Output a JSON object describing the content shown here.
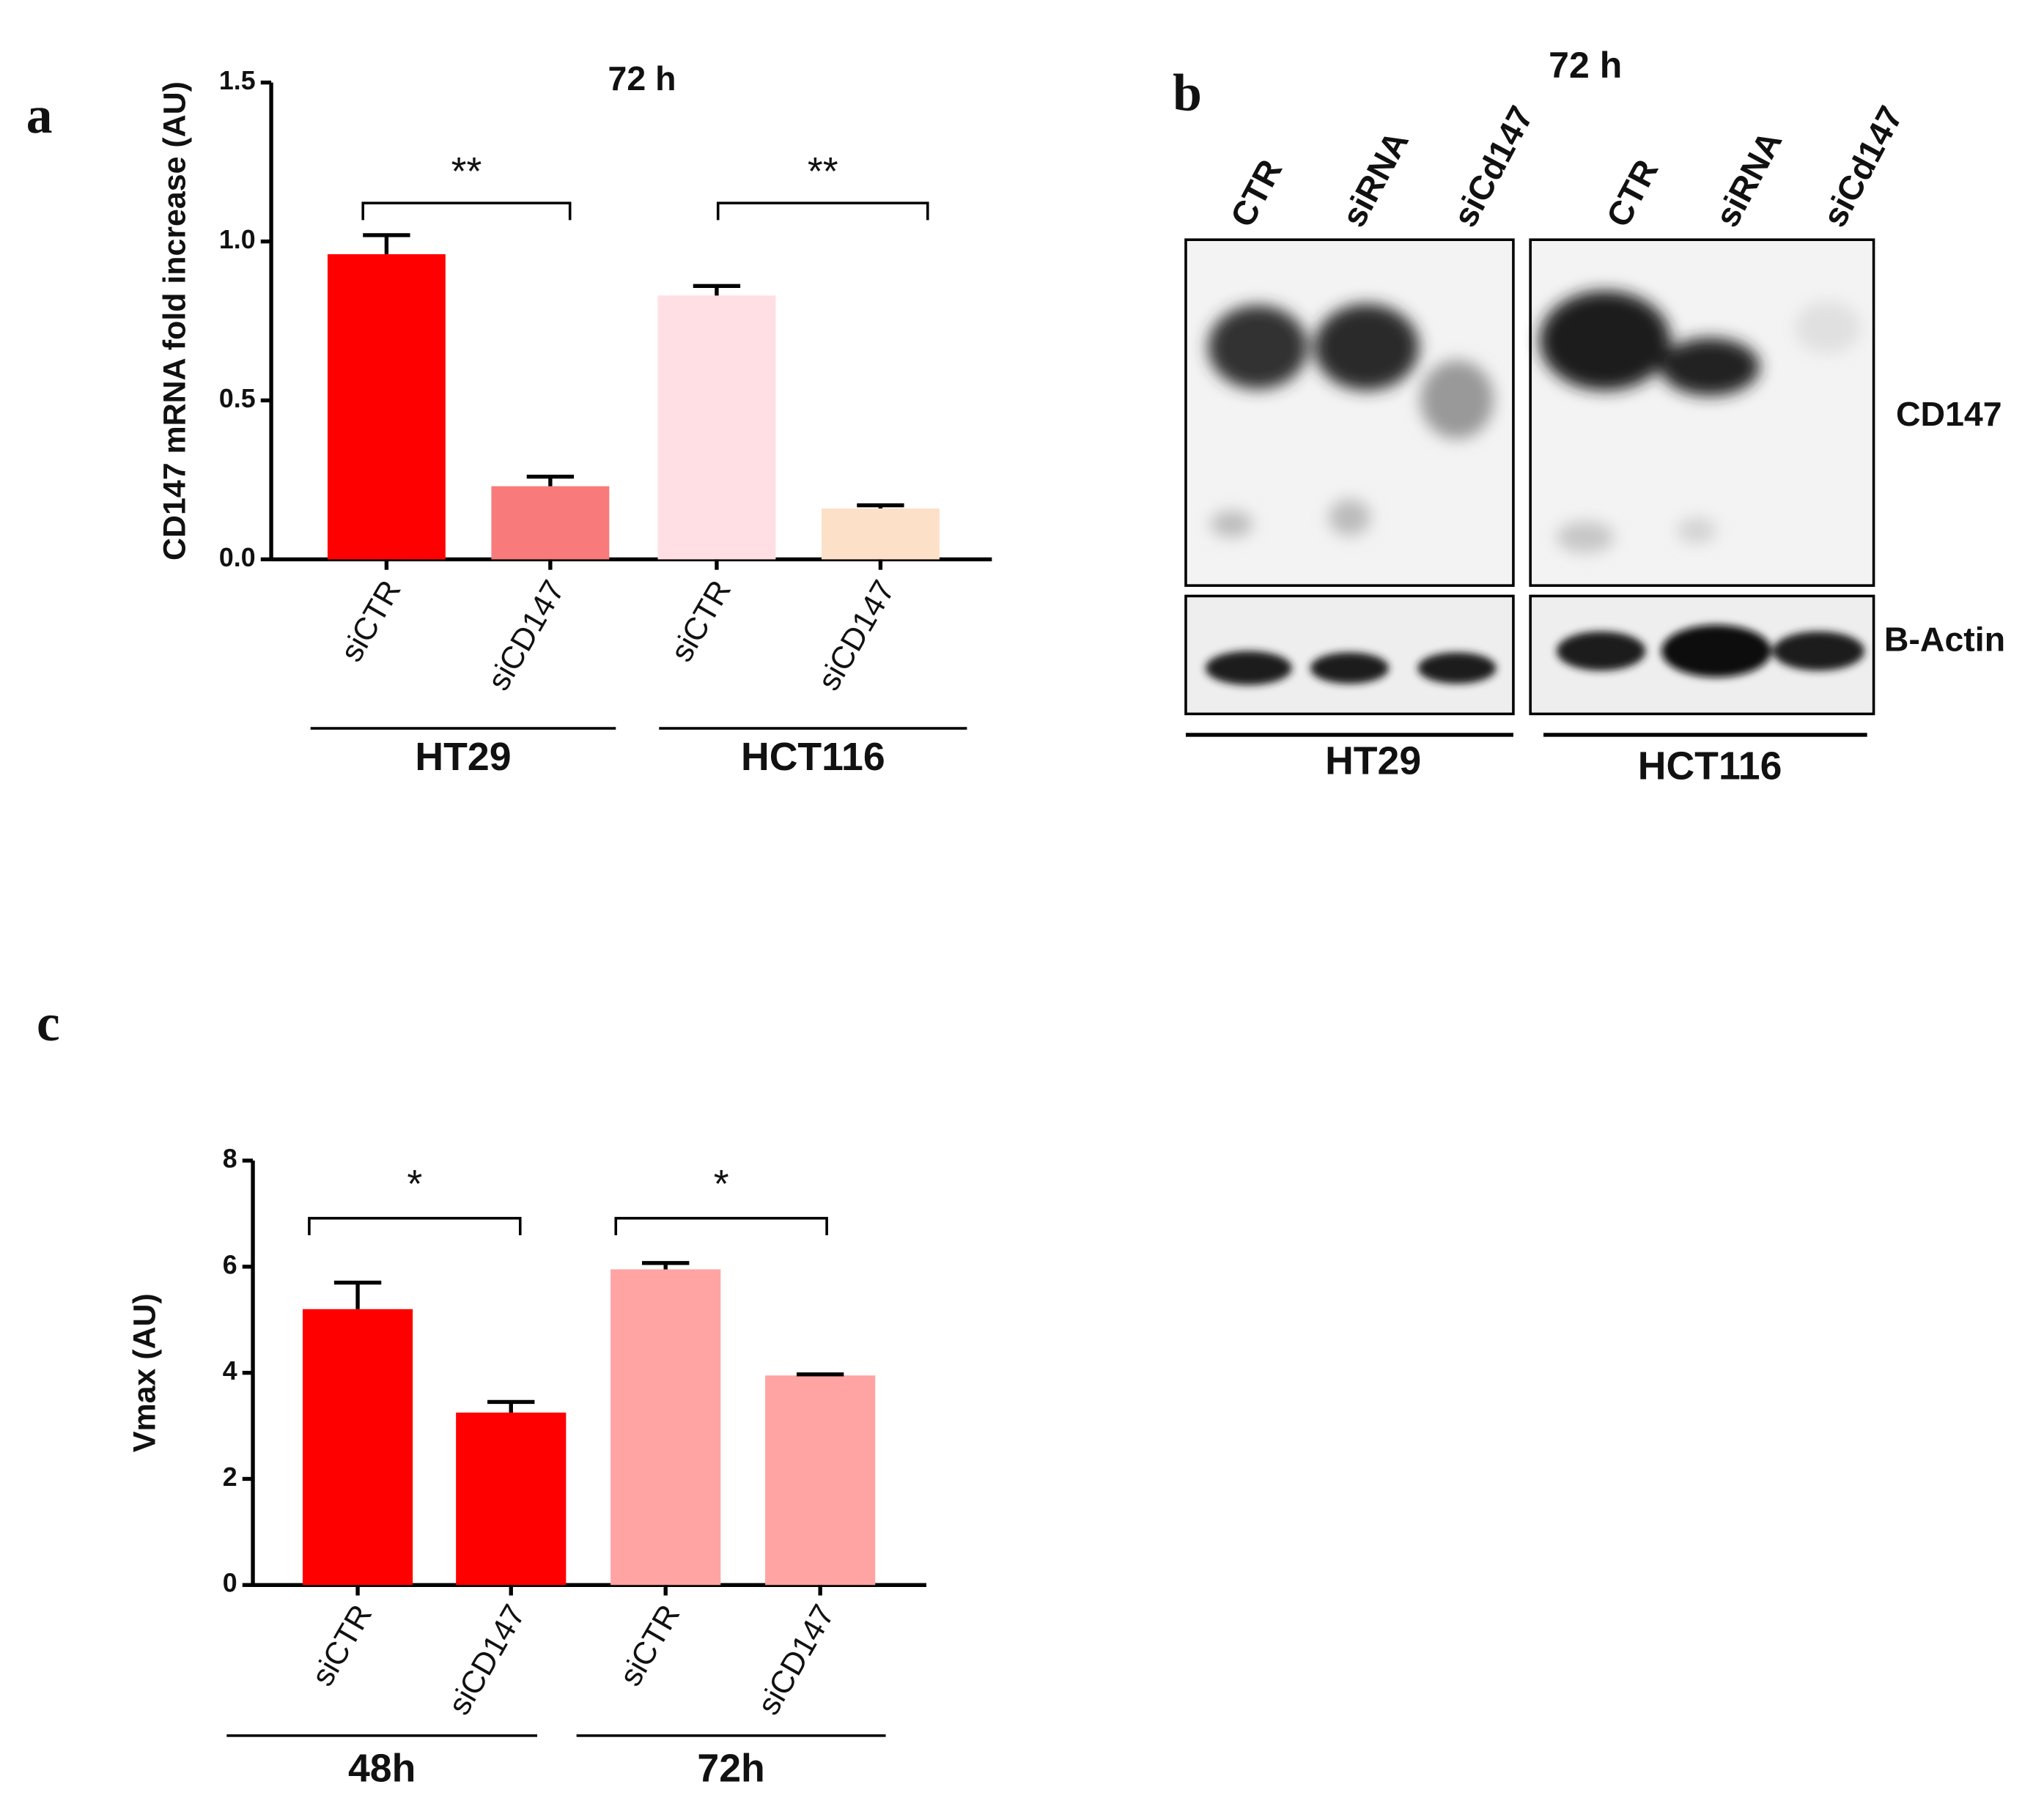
{
  "panel_labels": [
    "a",
    "b",
    "c"
  ],
  "chart_data": [
    {
      "type": "bar",
      "title": "72 h",
      "ylabel": "CD147 mRNA fold increase (AU)",
      "categories": [
        "siCTR",
        "siCD147",
        "siCTR",
        "siCD147"
      ],
      "values": [
        0.96,
        0.23,
        0.83,
        0.16
      ],
      "errors": [
        0.06,
        0.03,
        0.03,
        0.01
      ],
      "colors": [
        "#ff0000",
        "#f87a7a",
        "#ffdfe3",
        "#fde0c8"
      ],
      "ylim": [
        0,
        1.5
      ],
      "yticks": [
        {
          "value": 0,
          "label": "0.0"
        },
        0.5,
        {
          "value": 1,
          "label": "1.0"
        },
        1.5
      ],
      "groups": [
        "HT29",
        "HCT116"
      ],
      "annotations": [
        "**",
        "**"
      ]
    },
    {
      "type": "bar",
      "ylabel": "Vmax (AU)",
      "categories": [
        "siCTR",
        "siCD147",
        "siCTR",
        "siCD147"
      ],
      "values": [
        5.2,
        3.25,
        5.95,
        3.95
      ],
      "errors": [
        0.5,
        0.2,
        0.12,
        0.02
      ],
      "colors": [
        "#ff0000",
        "#ff0000",
        "#ffa3a3",
        "#ffa3a3"
      ],
      "ylim": [
        0,
        8
      ],
      "yticks": [
        0,
        2,
        4,
        6,
        8
      ],
      "groups": [
        "48h",
        "72h"
      ],
      "annotations": [
        "*",
        "*"
      ]
    }
  ],
  "blot": {
    "title": "72 h",
    "lanes": [
      "CTR",
      "siRNA",
      "siCd147",
      "CTR",
      "siRNA",
      "siCd147"
    ],
    "bands": [
      "CD147",
      "B-Actin"
    ],
    "cell_lines": [
      "HT29",
      "HCT116"
    ]
  }
}
